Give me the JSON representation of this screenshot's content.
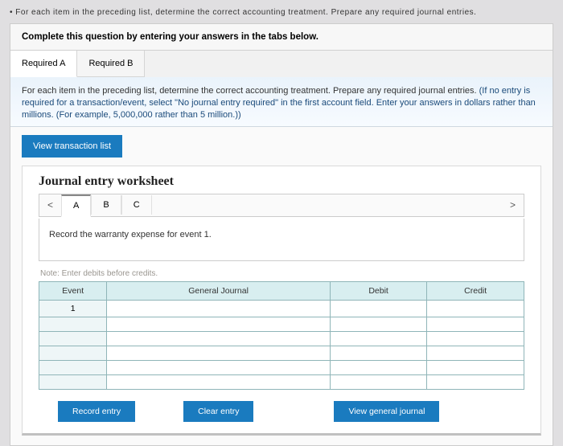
{
  "top_blurred_text": "• For each item in the preceding list, determine the correct accounting treatment. Prepare any required journal entries.",
  "instruction": "Complete this question by entering your answers in the tabs below.",
  "tabs": {
    "a": "Required A",
    "b": "Required B"
  },
  "tab_content": {
    "line1": "For each item in the preceding list, determine the correct accounting treatment. Prepare any required journal entries. ",
    "line2": "(If no entry is required for a transaction/event, select \"No journal entry required\" in the first account field. Enter your answers in dollars rather than millions. (For example, 5,000,000 rather than 5 million.))"
  },
  "view_list_btn": "View transaction list",
  "worksheet": {
    "title": "Journal entry worksheet",
    "nav_tabs": {
      "a": "A",
      "b": "B",
      "c": "C"
    },
    "record_text": "Record the warranty expense for event 1.",
    "note": "Note: Enter debits before credits.",
    "headers": {
      "event": "Event",
      "general_journal": "General Journal",
      "debit": "Debit",
      "credit": "Credit"
    },
    "rows": [
      {
        "event": "1",
        "gj": "",
        "debit": "",
        "credit": ""
      },
      {
        "event": "",
        "gj": "",
        "debit": "",
        "credit": ""
      },
      {
        "event": "",
        "gj": "",
        "debit": "",
        "credit": ""
      },
      {
        "event": "",
        "gj": "",
        "debit": "",
        "credit": ""
      },
      {
        "event": "",
        "gj": "",
        "debit": "",
        "credit": ""
      },
      {
        "event": "",
        "gj": "",
        "debit": "",
        "credit": ""
      }
    ],
    "buttons": {
      "record": "Record entry",
      "clear": "Clear entry",
      "view_gj": "View general journal"
    }
  },
  "colors": {
    "primary_btn": "#1a7bbf",
    "table_header_bg": "#d8eef0",
    "table_border": "#8fb5b8",
    "page_bg": "#e0dfe1"
  }
}
